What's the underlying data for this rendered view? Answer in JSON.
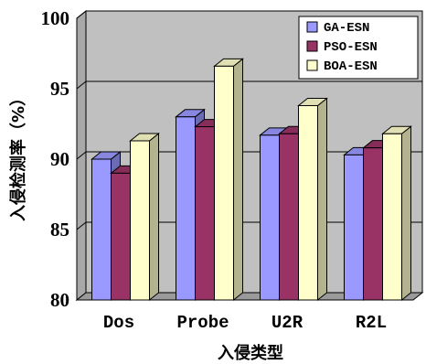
{
  "chart_data": {
    "type": "bar",
    "title": "",
    "xlabel": "入侵类型",
    "ylabel": "入侵检测率（%）",
    "ylim": [
      80,
      100
    ],
    "yticks": [
      "80",
      "85",
      "90",
      "95",
      "100"
    ],
    "categories": [
      "Dos",
      "Probe",
      "U2R",
      "R2L"
    ],
    "series": [
      {
        "name": "GA-ESN",
        "values": [
          90.0,
          93.0,
          91.7,
          90.3
        ],
        "color": "#9999ff"
      },
      {
        "name": "PSO-ESN",
        "values": [
          89.0,
          92.3,
          91.8,
          90.8
        ],
        "color": "#993366"
      },
      {
        "name": "BOA-ESN",
        "values": [
          91.3,
          96.6,
          93.8,
          91.8
        ],
        "color": "#ffffcc"
      }
    ],
    "grid": true,
    "legend": "top-right",
    "wall_color": "#c0c0c0"
  }
}
